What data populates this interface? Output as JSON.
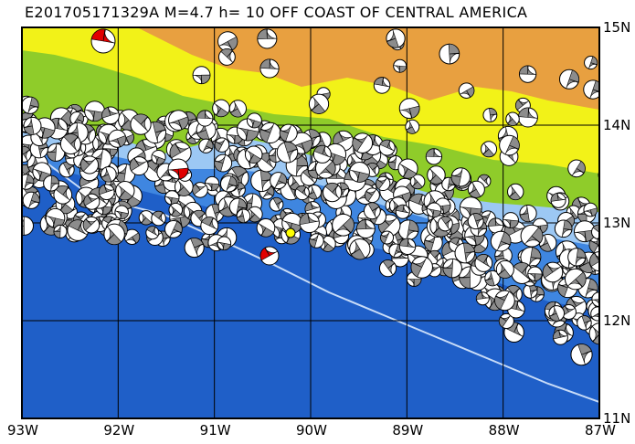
{
  "title": "E201705171329A M=4.7 h= 10 OFF COAST OF CENTRAL AMERICA",
  "x_ticks": [
    "93W",
    "92W",
    "91W",
    "90W",
    "89W",
    "88W",
    "87W"
  ],
  "y_ticks": [
    "15N",
    "14N",
    "13N",
    "12N",
    "11N"
  ],
  "colors": {
    "deep_ocean": "#1f5fc8",
    "mid_ocean": "#3f86e0",
    "shelf": "#9cc8f4",
    "lowland": "#8fcc2a",
    "upland": "#f2f218",
    "highland": "#e8a040",
    "target_event": "#e00000",
    "nearby_marker": "#ffff00"
  },
  "legend_icons": [
    "beachball-focal-mechanism-icon"
  ]
}
